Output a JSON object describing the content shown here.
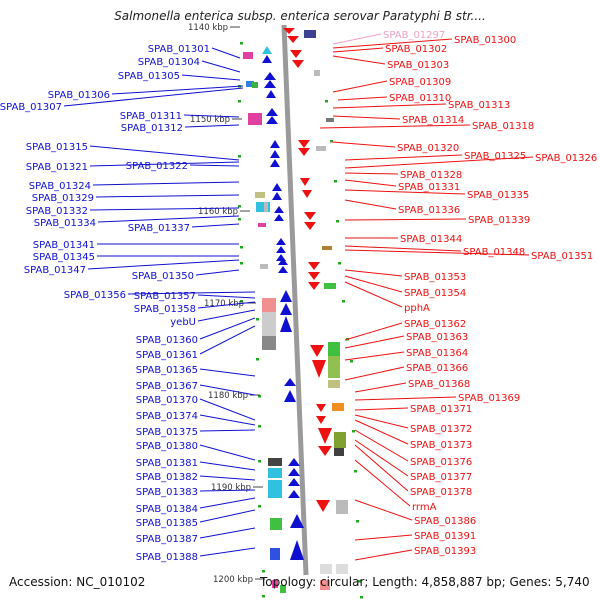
{
  "title": "Salmonella enterica subsp. enterica serovar Paratyphi B str....",
  "accession": "Accession: NC_010102",
  "topology_summary": "Topology: circular; Length: 4,858,887 bp; Genes: 5,740",
  "colors": {
    "left_gene": "#1010d0",
    "right_gene": "#ee1111",
    "faded_gene": "#f0a0c8",
    "backbone": "#999999",
    "tick": "#22aa22"
  },
  "kbp_labels": [
    {
      "text": "1140 kbp",
      "pos": 0
    },
    {
      "text": "1150 kbp",
      "pos": 1
    },
    {
      "text": "1160 kbp",
      "pos": 2
    },
    {
      "text": "1170 kbp",
      "pos": 3
    },
    {
      "text": "1180 kbp",
      "pos": 4
    },
    {
      "text": "1190 kbp",
      "pos": 5
    },
    {
      "text": "1200 kbp",
      "pos": 6
    }
  ],
  "left_genes": [
    "SPAB_01301",
    "SPAB_01304",
    "SPAB_01305",
    "SPAB_01306",
    "SPAB_01307",
    "SPAB_01311",
    "SPAB_01312",
    "SPAB_01315",
    "SPAB_01321",
    "SPAB_01322",
    "SPAB_01324",
    "SPAB_01329",
    "SPAB_01332",
    "SPAB_01334",
    "SPAB_01337",
    "SPAB_01341",
    "SPAB_01345",
    "SPAB_01347",
    "SPAB_01350",
    "SPAB_01356",
    "SPAB_01357",
    "SPAB_01358",
    "yebU",
    "SPAB_01360",
    "SPAB_01361",
    "SPAB_01365",
    "SPAB_01367",
    "SPAB_01370",
    "SPAB_01374",
    "SPAB_01375",
    "SPAB_01380",
    "SPAB_01381",
    "SPAB_01382",
    "SPAB_01383",
    "SPAB_01384",
    "SPAB_01385",
    "SPAB_01387",
    "SPAB_01388"
  ],
  "right_genes": [
    "SPAB_01297",
    "SPAB_01300",
    "SPAB_01302",
    "SPAB_01303",
    "SPAB_01309",
    "SPAB_01310",
    "SPAB_01313",
    "SPAB_01314",
    "SPAB_01318",
    "SPAB_01320",
    "SPAB_01325",
    "SPAB_01326",
    "SPAB_01328",
    "SPAB_01331",
    "SPAB_01335",
    "SPAB_01336",
    "SPAB_01339",
    "SPAB_01344",
    "SPAB_01348",
    "SPAB_01351",
    "SPAB_01353",
    "SPAB_01354",
    "pphA",
    "SPAB_01362",
    "SPAB_01363",
    "SPAB_01364",
    "SPAB_01366",
    "SPAB_01368",
    "SPAB_01369",
    "SPAB_01371",
    "SPAB_01372",
    "SPAB_01373",
    "SPAB_01376",
    "SPAB_01377",
    "SPAB_01378",
    "rrmA",
    "SPAB_01386",
    "SPAB_01391",
    "SPAB_01393"
  ]
}
